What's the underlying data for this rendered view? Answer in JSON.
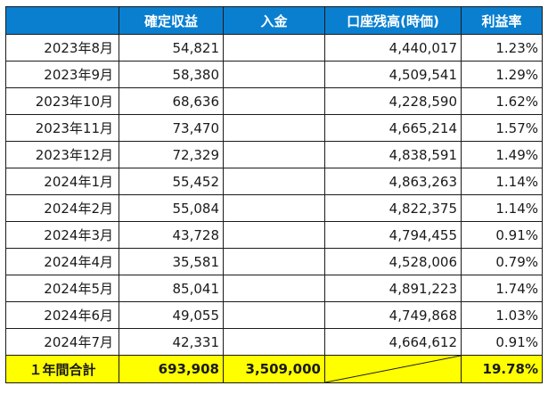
{
  "headers": [
    "",
    "確定収益",
    "入金",
    "口座残高(時価)",
    "利益率"
  ],
  "rows": [
    {
      "month": "2023年8月",
      "profit": "54,821",
      "deposit": "",
      "balance": "4,440,017",
      "rate": "1.23%"
    },
    {
      "month": "2023年9月",
      "profit": "58,380",
      "deposit": "",
      "balance": "4,509,541",
      "rate": "1.29%"
    },
    {
      "month": "2023年10月",
      "profit": "68,636",
      "deposit": "",
      "balance": "4,228,590",
      "rate": "1.62%"
    },
    {
      "month": "2023年11月",
      "profit": "73,470",
      "deposit": "",
      "balance": "4,665,214",
      "rate": "1.57%"
    },
    {
      "month": "2023年12月",
      "profit": "72,329",
      "deposit": "",
      "balance": "4,838,591",
      "rate": "1.49%"
    },
    {
      "month": "2024年1月",
      "profit": "55,452",
      "deposit": "",
      "balance": "4,863,263",
      "rate": "1.14%"
    },
    {
      "month": "2024年2月",
      "profit": "55,084",
      "deposit": "",
      "balance": "4,822,375",
      "rate": "1.14%"
    },
    {
      "month": "2024年3月",
      "profit": "43,728",
      "deposit": "",
      "balance": "4,794,455",
      "rate": "0.91%"
    },
    {
      "month": "2024年4月",
      "profit": "35,581",
      "deposit": "",
      "balance": "4,528,006",
      "rate": "0.79%"
    },
    {
      "month": "2024年5月",
      "profit": "85,041",
      "deposit": "",
      "balance": "4,891,223",
      "rate": "1.74%"
    },
    {
      "month": "2024年6月",
      "profit": "49,055",
      "deposit": "",
      "balance": "4,749,868",
      "rate": "1.03%"
    },
    {
      "month": "2024年7月",
      "profit": "42,331",
      "deposit": "",
      "balance": "4,664,612",
      "rate": "0.91%"
    }
  ],
  "total": {
    "label": "１年間合計",
    "profit": "693,908",
    "deposit": "3,509,000",
    "rate": "19.78%"
  },
  "colors": {
    "header_bg": "#0a7fd0",
    "header_text": "#ffffff",
    "total_bg": "#ffff00",
    "border": "#1a1a1a"
  }
}
